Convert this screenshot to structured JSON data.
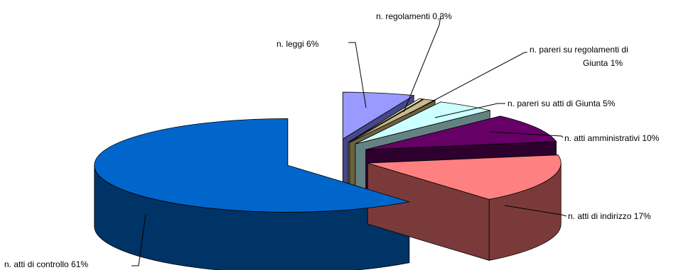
{
  "chart_data": {
    "type": "pie",
    "style": "3d-exploded",
    "slices": [
      {
        "label": "n. leggi 6%",
        "value": 6,
        "color": "#9999ff",
        "side_color": "#47478a"
      },
      {
        "label": "n. regolamenti 0,3%",
        "value": 0.3,
        "color": "#ffffcc",
        "side_color": "#8c8c66"
      },
      {
        "label": "n. pareri su regolamenti di Giunta 1%",
        "value": 1,
        "color": "#c9b98e",
        "side_color": "#6b6240"
      },
      {
        "label": "n. pareri su atti di Giunta 5%",
        "value": 5,
        "color": "#ccffff",
        "side_color": "#648282"
      },
      {
        "label": "n. atti amministrativi 10%",
        "value": 10,
        "color": "#660066",
        "side_color": "#2e002e"
      },
      {
        "label": "n. atti di indirizzo 17%",
        "value": 17,
        "color": "#ff8080",
        "side_color": "#7b3a3a"
      },
      {
        "label": "n. atti di controllo  61%",
        "value": 61,
        "color": "#0066cc",
        "side_color": "#003366"
      }
    ],
    "legend": "none"
  }
}
